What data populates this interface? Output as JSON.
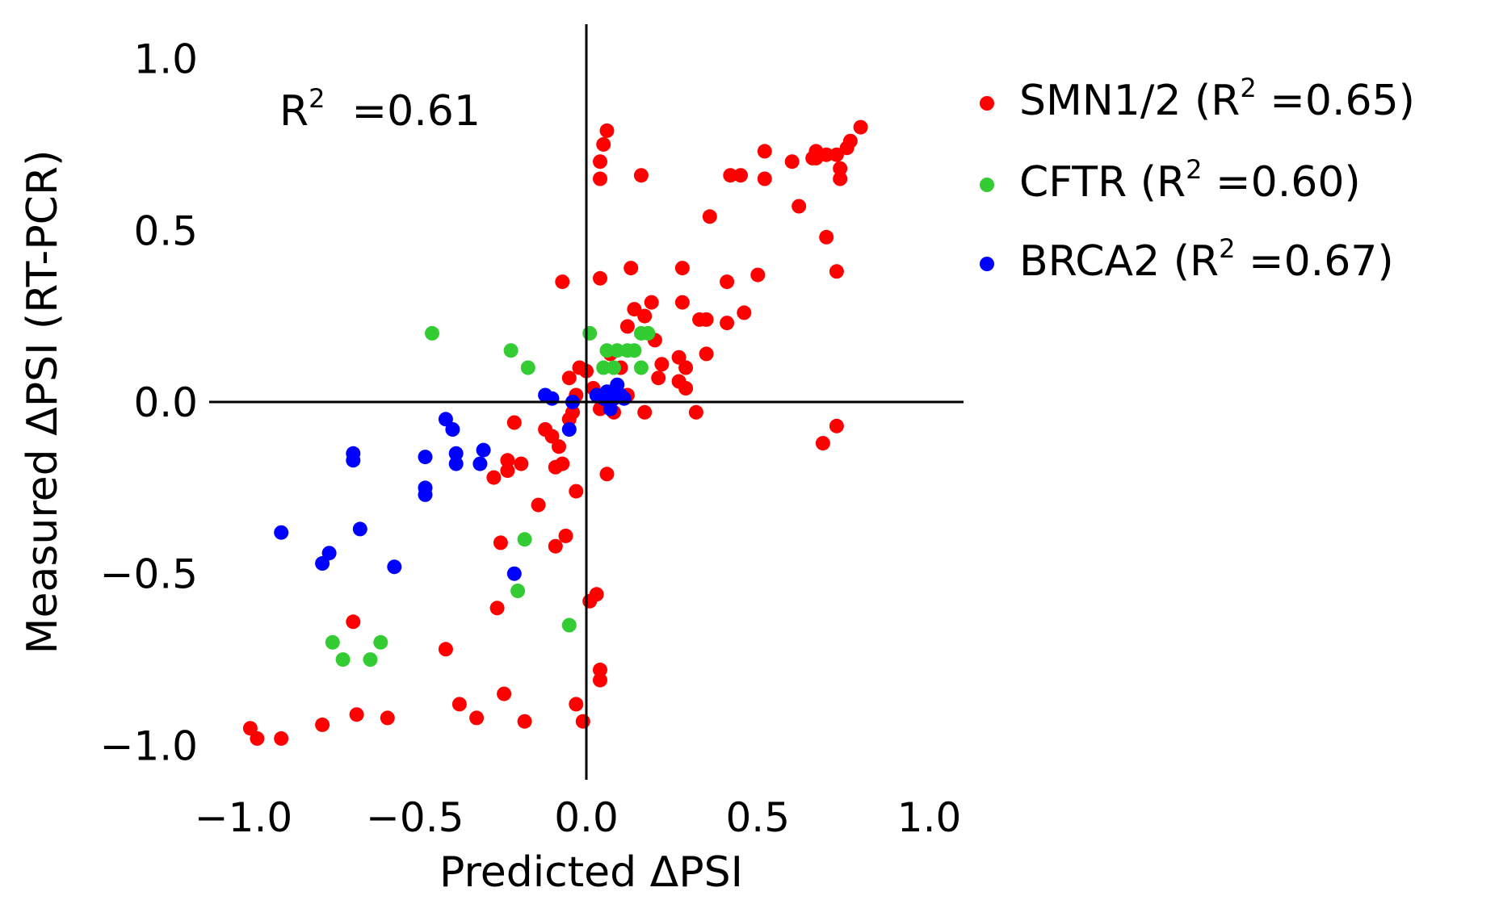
{
  "chart_data": {
    "type": "scatter",
    "xlabel": "Predicted ΔPSI",
    "ylabel": "Measured ΔPSI (RT-PCR)",
    "xlim": [
      -1.1,
      1.1
    ],
    "ylim": [
      -1.1,
      1.1
    ],
    "xticks": [
      -1.0,
      -0.5,
      0.0,
      0.5,
      1.0
    ],
    "yticks": [
      -1.0,
      -0.5,
      0.0,
      0.5,
      1.0
    ],
    "xtick_labels": [
      "−1.0",
      "−0.5",
      "0.0",
      "0.5",
      "1.0"
    ],
    "ytick_labels": [
      "−1.0",
      "−0.5",
      "0.0",
      "0.5",
      "1.0"
    ],
    "grid": false,
    "zero_lines": true,
    "legend_position": "outside-right",
    "annotation": {
      "base": "R",
      "sup": "2",
      "rest": "  =0.61"
    },
    "series": [
      {
        "name": "SMN1/2",
        "legend": {
          "base": "SMN1/2 (R",
          "sup": "2",
          "rest": " =0.65)"
        },
        "color": "#ff0000",
        "points": [
          [
            -0.98,
            -0.95
          ],
          [
            -0.96,
            -0.98
          ],
          [
            -0.89,
            -0.98
          ],
          [
            -0.77,
            -0.94
          ],
          [
            -0.67,
            -0.91
          ],
          [
            -0.58,
            -0.92
          ],
          [
            -0.68,
            -0.64
          ],
          [
            -0.41,
            -0.72
          ],
          [
            -0.37,
            -0.88
          ],
          [
            -0.32,
            -0.92
          ],
          [
            -0.24,
            -0.85
          ],
          [
            -0.18,
            -0.93
          ],
          [
            -0.26,
            -0.6
          ],
          [
            -0.25,
            -0.41
          ],
          [
            -0.14,
            -0.3
          ],
          [
            -0.27,
            -0.22
          ],
          [
            -0.23,
            -0.17
          ],
          [
            -0.23,
            -0.2
          ],
          [
            -0.19,
            -0.18
          ],
          [
            -0.21,
            -0.06
          ],
          [
            -0.09,
            -0.19
          ],
          [
            -0.09,
            -0.42
          ],
          [
            -0.06,
            -0.39
          ],
          [
            -0.03,
            -0.26
          ],
          [
            0.01,
            -0.58
          ],
          [
            0.03,
            -0.56
          ],
          [
            0.04,
            -0.78
          ],
          [
            0.04,
            -0.81
          ],
          [
            -0.03,
            -0.88
          ],
          [
            -0.01,
            -0.93
          ],
          [
            0.06,
            -0.21
          ],
          [
            -0.07,
            -0.18
          ],
          [
            -0.08,
            -0.13
          ],
          [
            -0.1,
            -0.1
          ],
          [
            -0.12,
            -0.08
          ],
          [
            -0.05,
            -0.05
          ],
          [
            -0.04,
            -0.03
          ],
          [
            -0.03,
            0.02
          ],
          [
            -0.05,
            0.07
          ],
          [
            -0.02,
            0.1
          ],
          [
            0.0,
            0.09
          ],
          [
            0.02,
            0.04
          ],
          [
            0.04,
            -0.02
          ],
          [
            0.06,
            0.0
          ],
          [
            0.08,
            -0.03
          ],
          [
            0.12,
            0.02
          ],
          [
            0.17,
            -0.03
          ],
          [
            0.07,
            0.14
          ],
          [
            0.1,
            0.1
          ],
          [
            0.12,
            0.22
          ],
          [
            0.14,
            0.27
          ],
          [
            0.17,
            0.25
          ],
          [
            0.19,
            0.29
          ],
          [
            0.2,
            0.18
          ],
          [
            0.22,
            0.11
          ],
          [
            0.21,
            0.07
          ],
          [
            0.27,
            0.13
          ],
          [
            0.27,
            0.06
          ],
          [
            0.29,
            0.1
          ],
          [
            0.29,
            0.04
          ],
          [
            0.28,
            0.29
          ],
          [
            0.28,
            0.39
          ],
          [
            0.33,
            0.24
          ],
          [
            0.35,
            0.24
          ],
          [
            0.35,
            0.14
          ],
          [
            0.32,
            -0.03
          ],
          [
            0.41,
            0.23
          ],
          [
            0.41,
            0.35
          ],
          [
            0.36,
            0.54
          ],
          [
            0.46,
            0.26
          ],
          [
            0.5,
            0.37
          ],
          [
            0.52,
            0.65
          ],
          [
            0.52,
            0.73
          ],
          [
            0.42,
            0.66
          ],
          [
            0.45,
            0.66
          ],
          [
            0.6,
            0.7
          ],
          [
            0.62,
            0.57
          ],
          [
            0.66,
            0.71
          ],
          [
            0.67,
            0.71
          ],
          [
            0.67,
            0.73
          ],
          [
            0.68,
            0.72
          ],
          [
            0.7,
            0.72
          ],
          [
            0.7,
            0.48
          ],
          [
            0.73,
            0.38
          ],
          [
            0.73,
            0.72
          ],
          [
            0.74,
            0.68
          ],
          [
            0.74,
            0.65
          ],
          [
            0.76,
            0.74
          ],
          [
            0.77,
            0.76
          ],
          [
            0.8,
            0.8
          ],
          [
            0.73,
            -0.07
          ],
          [
            0.69,
            -0.12
          ],
          [
            0.04,
            0.65
          ],
          [
            0.04,
            0.7
          ],
          [
            0.05,
            0.75
          ],
          [
            0.06,
            0.79
          ],
          [
            0.16,
            0.66
          ],
          [
            0.04,
            0.36
          ],
          [
            0.13,
            0.39
          ],
          [
            -0.07,
            0.35
          ]
        ]
      },
      {
        "name": "CFTR",
        "legend": {
          "base": "CFTR (R",
          "sup": "2",
          "rest": " =0.60)"
        },
        "color": "#33cc33",
        "points": [
          [
            -0.45,
            0.2
          ],
          [
            -0.22,
            0.15
          ],
          [
            -0.17,
            0.1
          ],
          [
            -0.18,
            -0.4
          ],
          [
            -0.2,
            -0.55
          ],
          [
            -0.05,
            -0.65
          ],
          [
            -0.74,
            -0.7
          ],
          [
            -0.71,
            -0.75
          ],
          [
            -0.6,
            -0.7
          ],
          [
            -0.63,
            -0.75
          ],
          [
            0.01,
            0.2
          ],
          [
            0.05,
            0.1
          ],
          [
            0.06,
            0.15
          ],
          [
            0.08,
            0.1
          ],
          [
            0.09,
            0.15
          ],
          [
            0.12,
            0.15
          ],
          [
            0.14,
            0.15
          ],
          [
            0.16,
            0.1
          ],
          [
            0.16,
            0.2
          ],
          [
            0.18,
            0.2
          ]
        ]
      },
      {
        "name": "BRCA2",
        "legend": {
          "base": "BRCA2 (R",
          "sup": "2",
          "rest": " =0.67)"
        },
        "color": "#0000ff",
        "points": [
          [
            -0.89,
            -0.38
          ],
          [
            -0.77,
            -0.47
          ],
          [
            -0.75,
            -0.44
          ],
          [
            -0.66,
            -0.37
          ],
          [
            -0.56,
            -0.48
          ],
          [
            -0.68,
            -0.15
          ],
          [
            -0.68,
            -0.17
          ],
          [
            -0.47,
            -0.16
          ],
          [
            -0.47,
            -0.25
          ],
          [
            -0.47,
            -0.27
          ],
          [
            -0.41,
            -0.05
          ],
          [
            -0.39,
            -0.08
          ],
          [
            -0.38,
            -0.15
          ],
          [
            -0.38,
            -0.18
          ],
          [
            -0.31,
            -0.18
          ],
          [
            -0.3,
            -0.14
          ],
          [
            -0.21,
            -0.5
          ],
          [
            -0.12,
            0.02
          ],
          [
            -0.1,
            0.01
          ],
          [
            -0.05,
            -0.08
          ],
          [
            -0.04,
            0.0
          ],
          [
            0.03,
            0.02
          ],
          [
            0.05,
            0.01
          ],
          [
            0.07,
            -0.02
          ],
          [
            0.08,
            0.01
          ],
          [
            0.09,
            0.05
          ],
          [
            0.1,
            0.02
          ],
          [
            0.11,
            0.01
          ],
          [
            0.06,
            0.03
          ]
        ]
      }
    ]
  }
}
